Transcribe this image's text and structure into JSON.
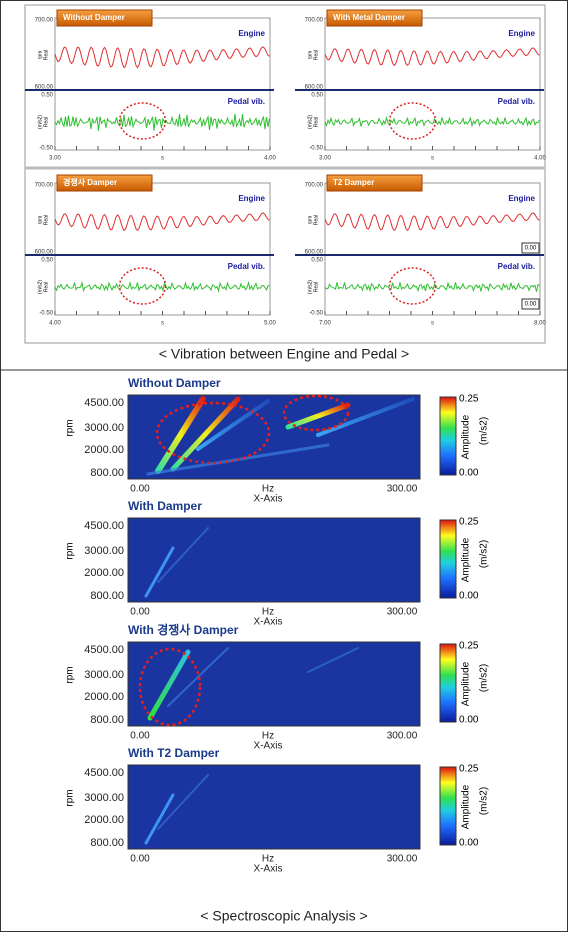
{
  "top_panels": [
    {
      "title": "Without Damper",
      "upper_label": "Engine",
      "lower_label": "Pedal vib.",
      "upper_yticks": [
        "700.00",
        "600.00"
      ],
      "lower_yticks": [
        "0.50",
        "-0.50"
      ],
      "upper_ylabel": [
        "rpm",
        "Real"
      ],
      "lower_ylabel": [
        "(m/s2)",
        "Real"
      ],
      "xticks": [
        "3.00",
        "s",
        "4.00"
      ]
    },
    {
      "title": "With Metal Damper",
      "upper_label": "Engine",
      "lower_label": "Pedal vib.",
      "upper_yticks": [
        "700.00",
        "600.00"
      ],
      "lower_yticks": [
        "0.50",
        "-0.50"
      ],
      "upper_ylabel": [
        "rpm",
        "Real"
      ],
      "lower_ylabel": [
        "(m/s2)",
        "Real"
      ],
      "xticks": [
        "3.00",
        "s",
        "4.00"
      ]
    },
    {
      "title": "경쟁사 Damper",
      "upper_label": "Engine",
      "lower_label": "Pedal vib.",
      "upper_yticks": [
        "700.00",
        "600.00"
      ],
      "lower_yticks": [
        "0.50",
        "-0.50"
      ],
      "upper_ylabel": [
        "rpm",
        "Real"
      ],
      "lower_ylabel": [
        "(m/s2)",
        "Real"
      ],
      "xticks": [
        "4.00",
        "s",
        "5.00"
      ]
    },
    {
      "title": "T2 Damper",
      "upper_label": "Engine",
      "lower_label": "Pedal vib.",
      "upper_yticks": [
        "700.00",
        "600.00"
      ],
      "lower_yticks": [
        "0.50",
        "-0.50"
      ],
      "upper_ylabel": [
        "rpm",
        "Real"
      ],
      "lower_ylabel": [
        "(m/s2)",
        "Real"
      ],
      "xticks": [
        "7.00",
        "s",
        "8.00"
      ],
      "markers": [
        "0.00",
        "0.00"
      ]
    }
  ],
  "top_caption": "< Vibration between Engine and Pedal >",
  "spectra": [
    {
      "title": "Without Damper",
      "yticks": [
        "4500.00",
        "3000.00",
        "2000.00",
        "800.00"
      ],
      "ylabel": "rpm",
      "xticks": [
        "0.00",
        "Hz",
        "300.00"
      ],
      "xlabel": "X-Axis",
      "cbar_ticks": [
        "0.25",
        "0.00"
      ],
      "cbar_label": "Amplitude",
      "cbar_unit": "(m/s2)"
    },
    {
      "title": "With Damper",
      "yticks": [
        "4500.00",
        "3000.00",
        "2000.00",
        "800.00"
      ],
      "ylabel": "rpm",
      "xticks": [
        "0.00",
        "Hz",
        "300.00"
      ],
      "xlabel": "X-Axis",
      "cbar_ticks": [
        "0.25",
        "0.00"
      ],
      "cbar_label": "Amplitude",
      "cbar_unit": "(m/s2)"
    },
    {
      "title": "With 경쟁사 Damper",
      "yticks": [
        "4500.00",
        "3000.00",
        "2000.00",
        "800.00"
      ],
      "ylabel": "rpm",
      "xticks": [
        "0.00",
        "Hz",
        "300.00"
      ],
      "xlabel": "X-Axis",
      "cbar_ticks": [
        "0.25",
        "0.00"
      ],
      "cbar_label": "Amplitude",
      "cbar_unit": "(m/s2)"
    },
    {
      "title": "With T2 Damper",
      "yticks": [
        "4500.00",
        "3000.00",
        "2000.00",
        "800.00"
      ],
      "ylabel": "rpm",
      "xticks": [
        "0.00",
        "Hz",
        "300.00"
      ],
      "xlabel": "X-Axis",
      "cbar_ticks": [
        "0.25",
        "0.00"
      ],
      "cbar_label": "Amplitude",
      "cbar_unit": "(m/s2)"
    }
  ],
  "bottom_caption": "< Spectroscopic Analysis >"
}
